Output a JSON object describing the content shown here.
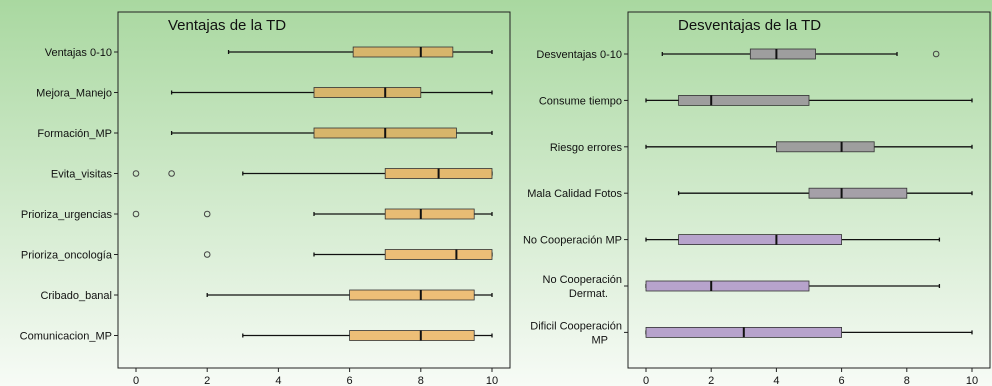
{
  "chart_data": [
    {
      "type": "boxplot",
      "orientation": "horizontal",
      "title": "Ventajas de la TD",
      "xlim": [
        0,
        10
      ],
      "xticks": [
        0,
        2,
        4,
        6,
        8,
        10
      ],
      "box_color": "#d7b56b",
      "box_color_alt": "#edbe77",
      "categories": [
        {
          "label": "Ventajas 0-10",
          "min": 2.6,
          "q1": 6.1,
          "median": 8.0,
          "q3": 8.9,
          "max": 10.0,
          "outliers": [],
          "color": "#d7b56b"
        },
        {
          "label": "Mejora_Manejo",
          "min": 1.0,
          "q1": 5.0,
          "median": 7.0,
          "q3": 8.0,
          "max": 10.0,
          "outliers": [],
          "color": "#d7b56b"
        },
        {
          "label": "Formación_MP",
          "min": 1.0,
          "q1": 5.0,
          "median": 7.0,
          "q3": 9.0,
          "max": 10.0,
          "outliers": [],
          "color": "#d7b56b"
        },
        {
          "label": "Evita_visitas",
          "min": 3.0,
          "q1": 7.0,
          "median": 8.5,
          "q3": 10.0,
          "max": 10.0,
          "outliers": [
            0,
            1
          ],
          "color": "#e3b96f"
        },
        {
          "label": "Prioriza_urgencias",
          "min": 5.0,
          "q1": 7.0,
          "median": 8.0,
          "q3": 9.5,
          "max": 10.0,
          "outliers": [
            0,
            2
          ],
          "color": "#e8bc74"
        },
        {
          "label": "Prioriza_oncología",
          "min": 5.0,
          "q1": 7.0,
          "median": 9.0,
          "q3": 10.0,
          "max": 10.0,
          "outliers": [
            2
          ],
          "color": "#edbe77"
        },
        {
          "label": "Cribado_banal",
          "min": 2.0,
          "q1": 6.0,
          "median": 8.0,
          "q3": 9.5,
          "max": 10.0,
          "outliers": [],
          "color": "#edbe77"
        },
        {
          "label": "Comunicacion_MP",
          "min": 3.0,
          "q1": 6.0,
          "median": 8.0,
          "q3": 9.5,
          "max": 10.0,
          "outliers": [],
          "color": "#edbe77"
        }
      ]
    },
    {
      "type": "boxplot",
      "orientation": "horizontal",
      "title": "Desventajas de la TD",
      "xlim": [
        0,
        10
      ],
      "xticks": [
        0,
        2,
        4,
        6,
        8,
        10
      ],
      "box_color": "#9e9e9e",
      "box_color_alt": "#b7a3cc",
      "categories": [
        {
          "label": "Desventajas 0-10",
          "min": 0.5,
          "q1": 3.2,
          "median": 4.0,
          "q3": 5.2,
          "max": 7.7,
          "outliers": [
            8.9
          ],
          "color": "#9e9e9e"
        },
        {
          "label": "Consume tiempo",
          "min": 0.0,
          "q1": 1.0,
          "median": 2.0,
          "q3": 5.0,
          "max": 10.0,
          "outliers": [],
          "color": "#9e9e9e"
        },
        {
          "label": "Riesgo errores",
          "min": 0.0,
          "q1": 4.0,
          "median": 6.0,
          "q3": 7.0,
          "max": 10.0,
          "outliers": [],
          "color": "#9e9e9e"
        },
        {
          "label": "Mala Calidad Fotos",
          "min": 1.0,
          "q1": 5.0,
          "median": 6.0,
          "q3": 8.0,
          "max": 10.0,
          "outliers": [],
          "color": "#a5a0a8"
        },
        {
          "label": "No Cooperación MP",
          "min": 0.0,
          "q1": 1.0,
          "median": 4.0,
          "q3": 6.0,
          "max": 9.0,
          "outliers": [],
          "color": "#b7a3cc"
        },
        {
          "label": "No Cooperación\nDermat.",
          "min": 0.0,
          "q1": 0.0,
          "median": 2.0,
          "q3": 5.0,
          "max": 9.0,
          "outliers": [],
          "color": "#b7a3cc"
        },
        {
          "label": "Dificil Cooperación\nMP",
          "min": 0.0,
          "q1": 0.0,
          "median": 3.0,
          "q3": 6.0,
          "max": 10.0,
          "outliers": [],
          "color": "#b7a3cc"
        }
      ]
    }
  ],
  "colors": {
    "panel_gradient_top": "#a9d8a0",
    "panel_gradient_bottom": "#f7fbf6",
    "whisker": "#111111",
    "median": "#111111"
  }
}
